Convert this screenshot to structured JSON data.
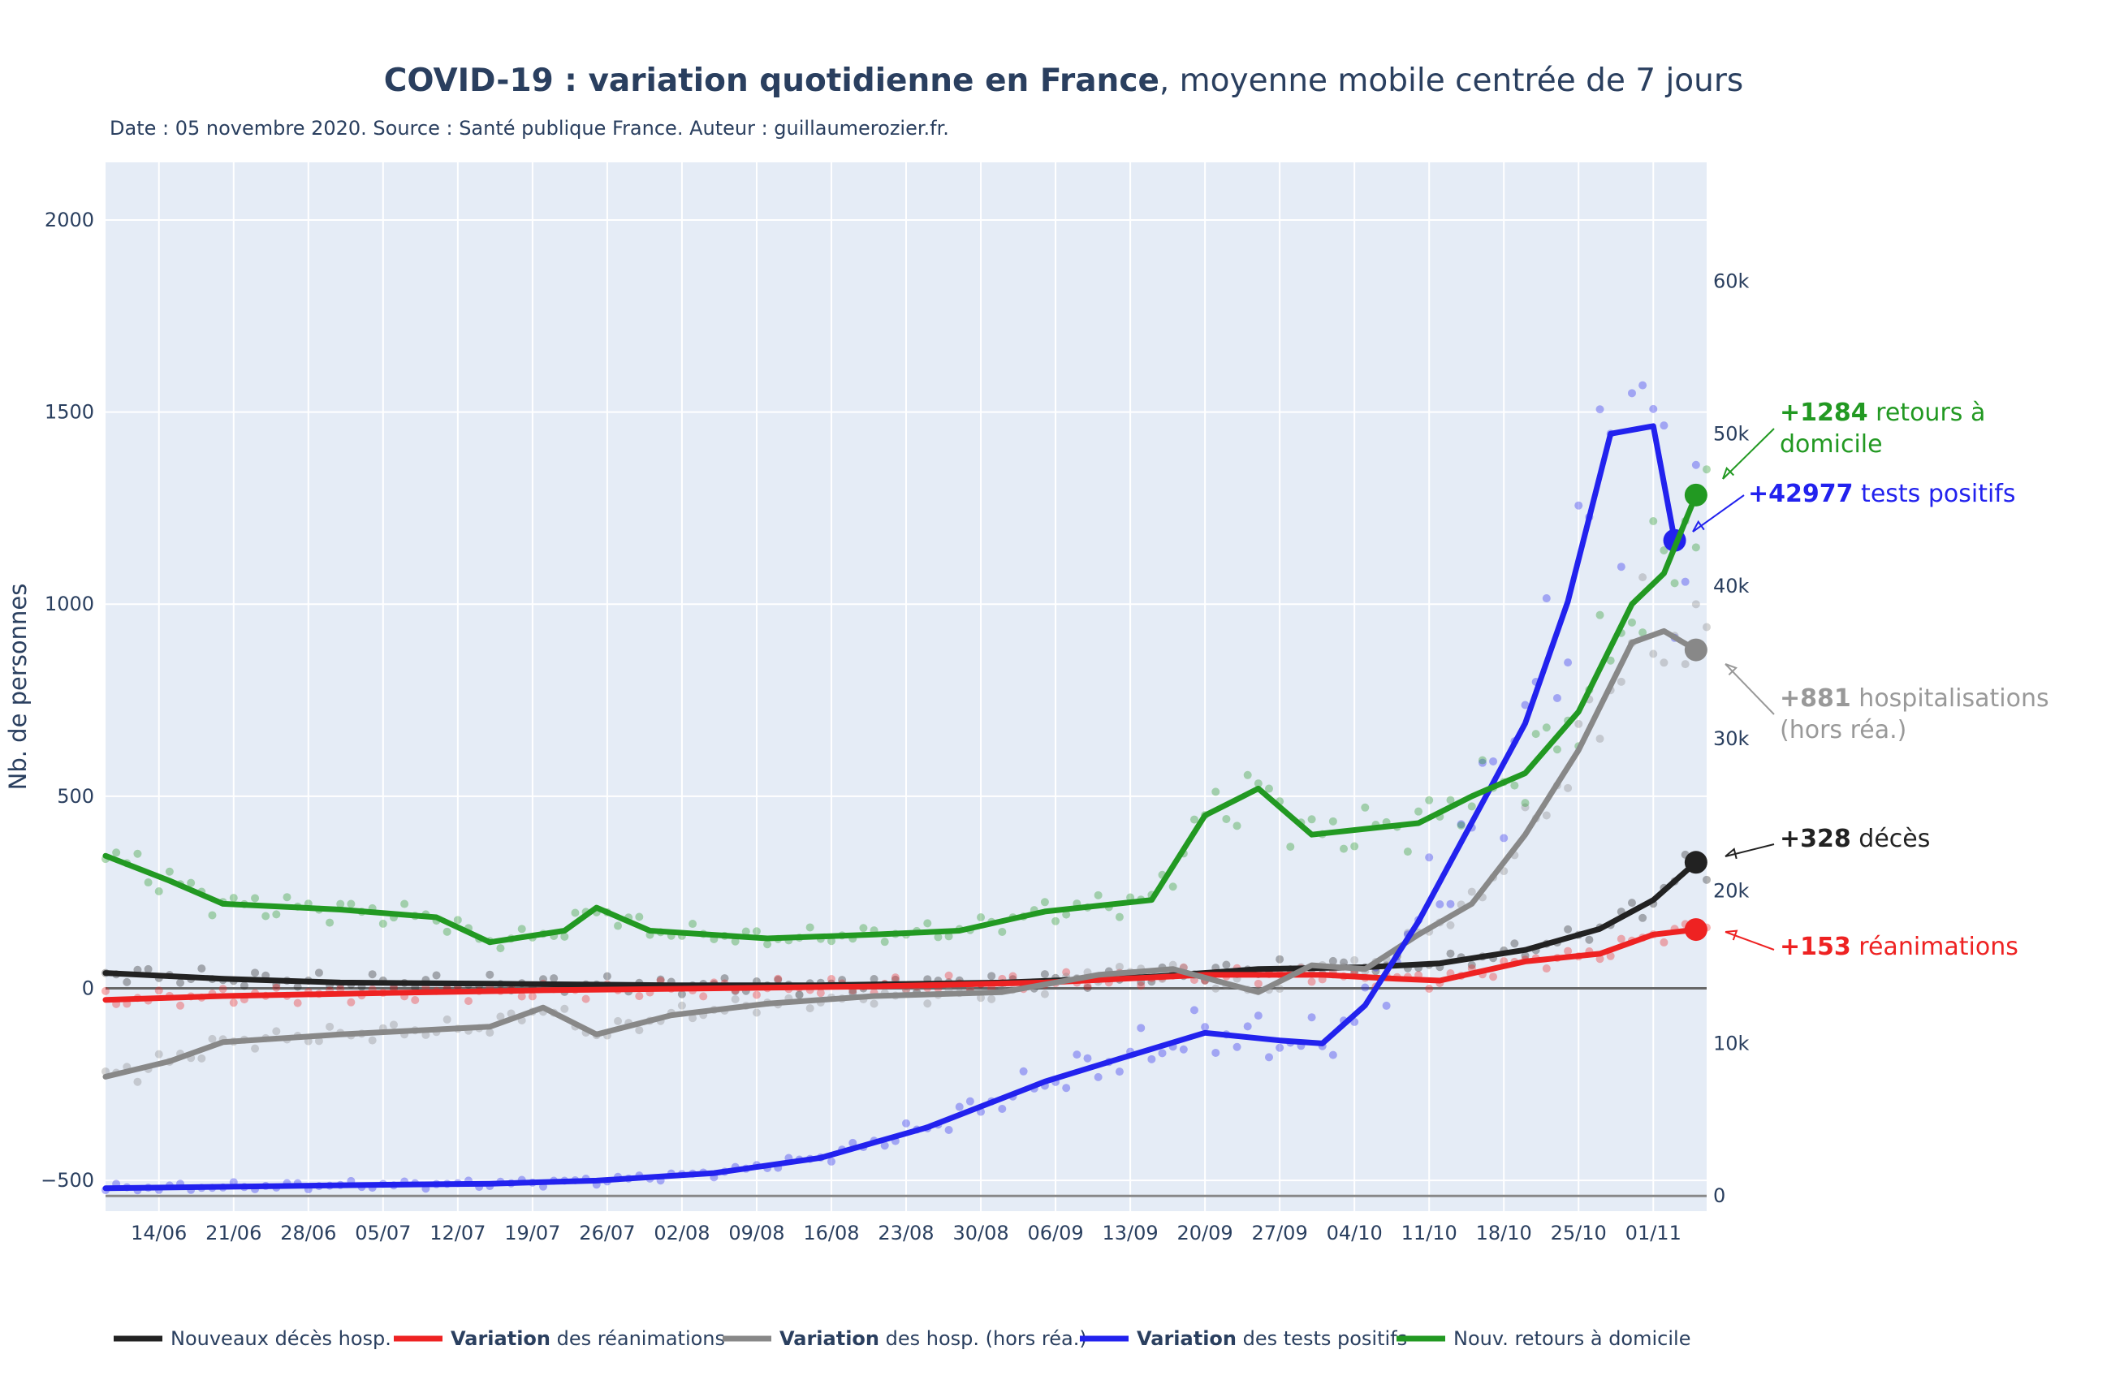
{
  "chart_data": {
    "type": "line",
    "title_bold": "COVID-19 : variation quotidienne en France",
    "title_rest": ", moyenne mobile centrée de 7 jours",
    "subtitle": "Date : 05 novembre 2020. Source : Santé publique France. Auteur : guillaumerozier.fr.",
    "ylabel": "Nb. de personnes",
    "x_start": "2020-06-09",
    "x_end": "2020-11-06",
    "x_ticks": [
      "14/06",
      "21/06",
      "28/06",
      "05/07",
      "12/07",
      "19/07",
      "26/07",
      "02/08",
      "09/08",
      "16/08",
      "23/08",
      "30/08",
      "06/09",
      "13/09",
      "20/09",
      "27/09",
      "04/10",
      "11/10",
      "18/10",
      "25/10",
      "01/11"
    ],
    "y_left": {
      "range": [
        -580,
        2150
      ],
      "ticks": [
        -500,
        0,
        500,
        1000,
        1500,
        2000
      ]
    },
    "y_right": {
      "range": [
        -1000,
        67800
      ],
      "ticks": [
        0,
        10000,
        20000,
        30000,
        40000,
        50000,
        60000
      ],
      "tick_labels": [
        "0",
        "10k",
        "20k",
        "30k",
        "40k",
        "50k",
        "60k"
      ]
    },
    "grid": true,
    "legend_position": "bottom",
    "series": [
      {
        "name_bold": "",
        "name_rest": "Nouveaux décès hosp.",
        "color": "#222222",
        "axis": "left",
        "points": [
          [
            "2020-06-09",
            40
          ],
          [
            "2020-06-20",
            25
          ],
          [
            "2020-07-01",
            15
          ],
          [
            "2020-07-15",
            12
          ],
          [
            "2020-08-01",
            8
          ],
          [
            "2020-08-15",
            8
          ],
          [
            "2020-09-01",
            15
          ],
          [
            "2020-09-15",
            30
          ],
          [
            "2020-09-25",
            50
          ],
          [
            "2020-10-05",
            55
          ],
          [
            "2020-10-12",
            65
          ],
          [
            "2020-10-20",
            100
          ],
          [
            "2020-10-27",
            155
          ],
          [
            "2020-11-01",
            230
          ],
          [
            "2020-11-05",
            328
          ]
        ]
      },
      {
        "name_bold": "Variation",
        "name_rest": " des réanimations",
        "color": "#ee2222",
        "axis": "left",
        "points": [
          [
            "2020-06-09",
            -30
          ],
          [
            "2020-06-20",
            -20
          ],
          [
            "2020-07-05",
            -12
          ],
          [
            "2020-07-20",
            -5
          ],
          [
            "2020-08-05",
            0
          ],
          [
            "2020-08-20",
            5
          ],
          [
            "2020-09-05",
            15
          ],
          [
            "2020-09-20",
            35
          ],
          [
            "2020-10-01",
            35
          ],
          [
            "2020-10-08",
            25
          ],
          [
            "2020-10-12",
            20
          ],
          [
            "2020-10-20",
            70
          ],
          [
            "2020-10-27",
            90
          ],
          [
            "2020-11-01",
            140
          ],
          [
            "2020-11-05",
            153
          ]
        ]
      },
      {
        "name_bold": "Variation",
        "name_rest": " des hosp. (hors réa.)",
        "color": "#888888",
        "axis": "left",
        "points": [
          [
            "2020-06-09",
            -230
          ],
          [
            "2020-06-15",
            -190
          ],
          [
            "2020-06-20",
            -140
          ],
          [
            "2020-07-01",
            -120
          ],
          [
            "2020-07-15",
            -100
          ],
          [
            "2020-07-20",
            -50
          ],
          [
            "2020-07-25",
            -120
          ],
          [
            "2020-08-01",
            -70
          ],
          [
            "2020-08-10",
            -40
          ],
          [
            "2020-08-20",
            -20
          ],
          [
            "2020-09-01",
            -10
          ],
          [
            "2020-09-10",
            35
          ],
          [
            "2020-09-17",
            50
          ],
          [
            "2020-09-25",
            -10
          ],
          [
            "2020-09-30",
            60
          ],
          [
            "2020-10-05",
            50
          ],
          [
            "2020-10-10",
            140
          ],
          [
            "2020-10-15",
            220
          ],
          [
            "2020-10-20",
            400
          ],
          [
            "2020-10-25",
            620
          ],
          [
            "2020-10-30",
            900
          ],
          [
            "2020-11-02",
            930
          ],
          [
            "2020-11-05",
            881
          ]
        ]
      },
      {
        "name_bold": "Variation",
        "name_rest": " des tests positifs",
        "color": "#2222ee",
        "axis": "right",
        "points": [
          [
            "2020-06-09",
            500
          ],
          [
            "2020-06-20",
            600
          ],
          [
            "2020-07-01",
            700
          ],
          [
            "2020-07-15",
            800
          ],
          [
            "2020-07-25",
            1000
          ],
          [
            "2020-08-05",
            1500
          ],
          [
            "2020-08-15",
            2500
          ],
          [
            "2020-08-25",
            4500
          ],
          [
            "2020-09-05",
            7500
          ],
          [
            "2020-09-12",
            9000
          ],
          [
            "2020-09-20",
            10700
          ],
          [
            "2020-09-27",
            10200
          ],
          [
            "2020-10-01",
            10000
          ],
          [
            "2020-10-05",
            12500
          ],
          [
            "2020-10-10",
            18000
          ],
          [
            "2020-10-15",
            24500
          ],
          [
            "2020-10-20",
            31000
          ],
          [
            "2020-10-24",
            39000
          ],
          [
            "2020-10-28",
            50000
          ],
          [
            "2020-11-01",
            50500
          ],
          [
            "2020-11-03",
            43000
          ]
        ]
      },
      {
        "name_bold": "",
        "name_rest": "Nouv. retours à domicile",
        "color": "#229922",
        "axis": "left",
        "points": [
          [
            "2020-06-09",
            345
          ],
          [
            "2020-06-15",
            280
          ],
          [
            "2020-06-20",
            220
          ],
          [
            "2020-07-01",
            205
          ],
          [
            "2020-07-10",
            185
          ],
          [
            "2020-07-15",
            120
          ],
          [
            "2020-07-22",
            150
          ],
          [
            "2020-07-25",
            210
          ],
          [
            "2020-07-30",
            150
          ],
          [
            "2020-08-10",
            130
          ],
          [
            "2020-08-20",
            140
          ],
          [
            "2020-08-28",
            150
          ],
          [
            "2020-09-05",
            200
          ],
          [
            "2020-09-15",
            230
          ],
          [
            "2020-09-20",
            450
          ],
          [
            "2020-09-25",
            520
          ],
          [
            "2020-09-30",
            400
          ],
          [
            "2020-10-10",
            430
          ],
          [
            "2020-10-15",
            500
          ],
          [
            "2020-10-20",
            560
          ],
          [
            "2020-10-25",
            720
          ],
          [
            "2020-10-30",
            1000
          ],
          [
            "2020-11-02",
            1080
          ],
          [
            "2020-11-05",
            1284
          ]
        ]
      }
    ],
    "annotations": [
      {
        "bold": "+1284",
        "rest": " retours à",
        "rest2": " domicile",
        "color": "#229922"
      },
      {
        "bold": "+42977",
        "rest": " tests positifs",
        "rest2": "",
        "color": "#2222ee"
      },
      {
        "bold": "+881",
        "rest": " hospitalisations",
        "rest2": " (hors réa.)",
        "color": "#999999"
      },
      {
        "bold": "+328",
        "rest": " décès",
        "rest2": "",
        "color": "#222222"
      },
      {
        "bold": "+153",
        "rest": " réanimations",
        "rest2": "",
        "color": "#ee2222"
      }
    ]
  }
}
